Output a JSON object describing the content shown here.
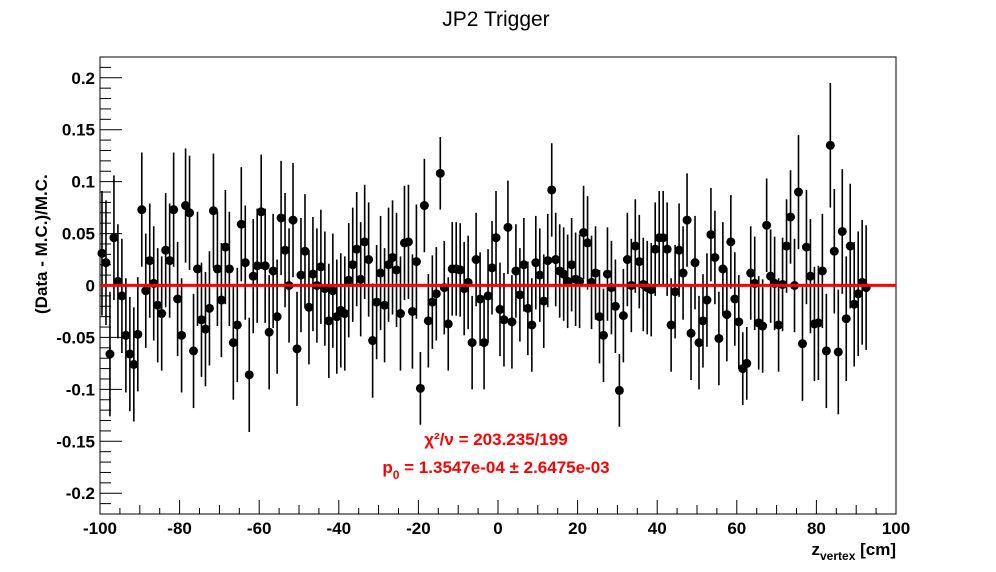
{
  "chart_data": {
    "type": "scatter",
    "title": "JP2 Trigger",
    "ylabel": "(Data - M.C.)/M.C.",
    "xlabel": {
      "main": "z",
      "sub": "vertex",
      "unit": " [cm]"
    },
    "xlim": [
      -100,
      100
    ],
    "ylim": [
      -0.22,
      0.22
    ],
    "x_ticks": [
      -100,
      -80,
      -60,
      -40,
      -20,
      0,
      20,
      40,
      60,
      80,
      100
    ],
    "x_tick_labels": [
      "-100",
      "-80",
      "-60",
      "-40",
      "-20",
      "0",
      "20",
      "40",
      "60",
      "80",
      "100"
    ],
    "y_ticks": [
      -0.2,
      -0.15,
      -0.1,
      -0.05,
      0,
      0.05,
      0.1,
      0.15,
      0.2
    ],
    "y_tick_labels": [
      "-0.2",
      "-0.15",
      "-0.1",
      "-0.05",
      "0",
      "0.05",
      "0.1",
      "0.15",
      "0.2"
    ],
    "fit": {
      "p0": 0.00013547,
      "color": "#ff0000"
    },
    "stats": {
      "chi2_label": "χ²/ν = 203.235/199",
      "p0_label": "p",
      "p0_sub": "0",
      "p0_value": " = 1.3547e-04 ± 2.6475e-03"
    },
    "marker_color": "#000000",
    "series": [
      {
        "points": [
          [
            -99.5,
            0.031,
            0.06
          ],
          [
            -98.5,
            0.022,
            0.06
          ],
          [
            -97.5,
            -0.066,
            0.06
          ],
          [
            -96.5,
            0.046,
            0.06
          ],
          [
            -95.5,
            0.004,
            0.055
          ],
          [
            -94.5,
            -0.01,
            0.055
          ],
          [
            -93.5,
            -0.048,
            0.055
          ],
          [
            -92.5,
            -0.066,
            0.055
          ],
          [
            -91.5,
            -0.076,
            0.055
          ],
          [
            -90.5,
            -0.047,
            0.055
          ],
          [
            -89.5,
            0.073,
            0.055
          ],
          [
            -88.5,
            -0.005,
            0.055
          ],
          [
            -87.5,
            0.024,
            0.055
          ],
          [
            -86.5,
            0.002,
            0.055
          ],
          [
            -85.5,
            -0.019,
            0.055
          ],
          [
            -84.5,
            -0.027,
            0.055
          ],
          [
            -83.5,
            0.034,
            0.055
          ],
          [
            -82.5,
            0.024,
            0.055
          ],
          [
            -81.5,
            0.073,
            0.055
          ],
          [
            -80.5,
            -0.013,
            0.055
          ],
          [
            -79.5,
            -0.048,
            0.055
          ],
          [
            -78.5,
            0.077,
            0.055
          ],
          [
            -77.5,
            0.07,
            0.055
          ],
          [
            -76.5,
            -0.063,
            0.055
          ],
          [
            -75.5,
            0.016,
            0.055
          ],
          [
            -74.5,
            -0.033,
            0.055
          ],
          [
            -73.5,
            -0.042,
            0.055
          ],
          [
            -72.5,
            -0.022,
            0.055
          ],
          [
            -71.5,
            0.072,
            0.055
          ],
          [
            -70.5,
            0.016,
            0.055
          ],
          [
            -69.5,
            -0.014,
            0.055
          ],
          [
            -68.5,
            0.037,
            0.055
          ],
          [
            -67.5,
            0.016,
            0.055
          ],
          [
            -66.5,
            -0.055,
            0.055
          ],
          [
            -65.5,
            -0.038,
            0.055
          ],
          [
            -64.5,
            0.059,
            0.055
          ],
          [
            -63.5,
            0.022,
            0.055
          ],
          [
            -62.5,
            -0.086,
            0.055
          ],
          [
            -61.5,
            0.009,
            0.055
          ],
          [
            -60.5,
            0.019,
            0.055
          ],
          [
            -59.5,
            0.071,
            0.055
          ],
          [
            -58.5,
            0.019,
            0.055
          ],
          [
            -57.5,
            -0.045,
            0.055
          ],
          [
            -56.5,
            0.014,
            0.055
          ],
          [
            -55.5,
            -0.03,
            0.055
          ],
          [
            -54.5,
            0.065,
            0.055
          ],
          [
            -53.5,
            0.034,
            0.055
          ],
          [
            -52.5,
            0.0,
            0.055
          ],
          [
            -51.5,
            0.063,
            0.055
          ],
          [
            -50.5,
            -0.061,
            0.055
          ],
          [
            -49.5,
            0.01,
            0.055
          ],
          [
            -48.5,
            0.033,
            0.055
          ],
          [
            -47.5,
            -0.021,
            0.055
          ],
          [
            -46.5,
            0.011,
            0.055
          ],
          [
            -45.5,
            0.0,
            0.055
          ],
          [
            -44.5,
            0.018,
            0.055
          ],
          [
            -43.5,
            -0.003,
            0.055
          ],
          [
            -42.5,
            -0.034,
            0.055
          ],
          [
            -41.5,
            -0.005,
            0.055
          ],
          [
            -40.5,
            -0.03,
            0.055
          ],
          [
            -39.5,
            -0.024,
            0.055
          ],
          [
            -38.5,
            -0.027,
            0.055
          ],
          [
            -37.5,
            0.005,
            0.055
          ],
          [
            -36.5,
            0.02,
            0.055
          ],
          [
            -35.5,
            0.035,
            0.055
          ],
          [
            -34.5,
            0.006,
            0.055
          ],
          [
            -33.5,
            0.042,
            0.055
          ],
          [
            -32.5,
            0.025,
            0.055
          ],
          [
            -31.5,
            -0.053,
            0.055
          ],
          [
            -30.5,
            -0.016,
            0.055
          ],
          [
            -29.5,
            0.012,
            0.055
          ],
          [
            -28.5,
            -0.019,
            0.055
          ],
          [
            -27.5,
            0.02,
            0.055
          ],
          [
            -26.5,
            0.027,
            0.055
          ],
          [
            -25.5,
            0.015,
            0.055
          ],
          [
            -24.5,
            -0.027,
            0.055
          ],
          [
            -23.5,
            0.041,
            0.055
          ],
          [
            -22.5,
            0.042,
            0.055
          ],
          [
            -21.5,
            -0.025,
            0.055
          ],
          [
            -20.5,
            0.023,
            0.055
          ],
          [
            -19.5,
            -0.099,
            0.035
          ],
          [
            -18.5,
            0.077,
            0.045
          ],
          [
            -17.5,
            -0.034,
            0.045
          ],
          [
            -16.5,
            -0.016,
            0.045
          ],
          [
            -15.5,
            -0.008,
            0.045
          ],
          [
            -14.5,
            0.108,
            0.035
          ],
          [
            -13.5,
            -0.002,
            0.045
          ],
          [
            -12.5,
            -0.037,
            0.045
          ],
          [
            -11.5,
            0.016,
            0.045
          ],
          [
            -10.5,
            0.016,
            0.045
          ],
          [
            -9.5,
            0.015,
            0.045
          ],
          [
            -8.5,
            -0.003,
            0.045
          ],
          [
            -7.5,
            0.003,
            0.045
          ],
          [
            -6.5,
            -0.055,
            0.045
          ],
          [
            -5.5,
            0.025,
            0.045
          ],
          [
            -4.5,
            -0.013,
            0.045
          ],
          [
            -3.5,
            -0.055,
            0.045
          ],
          [
            -2.5,
            -0.01,
            0.045
          ],
          [
            -1.5,
            0.017,
            0.045
          ],
          [
            -0.5,
            0.046,
            0.045
          ],
          [
            0.5,
            -0.023,
            0.045
          ],
          [
            1.5,
            -0.033,
            0.045
          ],
          [
            2.5,
            0.056,
            0.045
          ],
          [
            3.5,
            -0.035,
            0.045
          ],
          [
            4.5,
            0.014,
            0.045
          ],
          [
            5.5,
            -0.009,
            0.045
          ],
          [
            6.5,
            0.02,
            0.045
          ],
          [
            7.5,
            -0.022,
            0.045
          ],
          [
            8.5,
            -0.038,
            0.045
          ],
          [
            9.5,
            0.022,
            0.045
          ],
          [
            10.5,
            0.01,
            0.045
          ],
          [
            11.5,
            -0.015,
            0.045
          ],
          [
            12.5,
            0.024,
            0.045
          ],
          [
            13.5,
            0.092,
            0.045
          ],
          [
            14.5,
            0.025,
            0.045
          ],
          [
            15.5,
            0.014,
            0.045
          ],
          [
            16.5,
            0.011,
            0.045
          ],
          [
            17.5,
            0.004,
            0.045
          ],
          [
            18.5,
            0.02,
            0.045
          ],
          [
            19.5,
            0.006,
            0.045
          ],
          [
            20.5,
            0.004,
            0.045
          ],
          [
            21.5,
            0.051,
            0.045
          ],
          [
            22.5,
            0.041,
            0.045
          ],
          [
            23.5,
            0.003,
            0.045
          ],
          [
            24.5,
            0.012,
            0.045
          ],
          [
            25.5,
            -0.03,
            0.045
          ],
          [
            26.5,
            -0.048,
            0.045
          ],
          [
            27.5,
            0.011,
            0.045
          ],
          [
            28.5,
            -0.002,
            0.045
          ],
          [
            29.5,
            -0.02,
            0.045
          ],
          [
            30.5,
            -0.101,
            0.035
          ],
          [
            31.5,
            -0.029,
            0.045
          ],
          [
            32.5,
            0.025,
            0.045
          ],
          [
            33.5,
            0.0,
            0.045
          ],
          [
            34.5,
            0.038,
            0.045
          ],
          [
            35.5,
            0.023,
            0.045
          ],
          [
            36.5,
            0.001,
            0.045
          ],
          [
            37.5,
            -0.002,
            0.045
          ],
          [
            38.5,
            -0.004,
            0.045
          ],
          [
            39.5,
            0.035,
            0.045
          ],
          [
            40.5,
            0.046,
            0.045
          ],
          [
            41.5,
            0.046,
            0.045
          ],
          [
            42.5,
            0.035,
            0.045
          ],
          [
            43.5,
            -0.038,
            0.045
          ],
          [
            44.5,
            -0.006,
            0.045
          ],
          [
            45.5,
            0.034,
            0.045
          ],
          [
            46.5,
            0.012,
            0.045
          ],
          [
            47.5,
            0.063,
            0.045
          ],
          [
            48.5,
            -0.046,
            0.045
          ],
          [
            49.5,
            0.022,
            0.045
          ],
          [
            50.5,
            -0.055,
            0.045
          ],
          [
            51.5,
            -0.034,
            0.045
          ],
          [
            52.5,
            -0.014,
            0.045
          ],
          [
            53.5,
            0.049,
            0.045
          ],
          [
            54.5,
            0.027,
            0.045
          ],
          [
            55.5,
            -0.051,
            0.045
          ],
          [
            56.5,
            0.016,
            0.045
          ],
          [
            57.5,
            -0.028,
            0.045
          ],
          [
            58.5,
            0.042,
            0.045
          ],
          [
            59.5,
            -0.013,
            0.045
          ],
          [
            60.5,
            -0.035,
            0.045
          ],
          [
            61.5,
            -0.08,
            0.035
          ],
          [
            62.5,
            -0.075,
            0.035
          ],
          [
            63.5,
            0.012,
            0.045
          ],
          [
            64.5,
            0.002,
            0.045
          ],
          [
            65.5,
            -0.036,
            0.045
          ],
          [
            66.5,
            -0.039,
            0.045
          ],
          [
            67.5,
            0.058,
            0.045
          ],
          [
            68.5,
            0.009,
            0.045
          ],
          [
            69.5,
            0.002,
            0.045
          ],
          [
            70.5,
            -0.038,
            0.045
          ],
          [
            71.5,
            0.001,
            0.045
          ],
          [
            72.5,
            0.038,
            0.045
          ],
          [
            73.5,
            0.066,
            0.045
          ],
          [
            74.5,
            0.0,
            0.045
          ],
          [
            75.5,
            0.09,
            0.055
          ],
          [
            76.5,
            -0.056,
            0.055
          ],
          [
            77.5,
            0.037,
            0.055
          ],
          [
            78.5,
            0.009,
            0.055
          ],
          [
            79.5,
            -0.037,
            0.055
          ],
          [
            80.5,
            -0.036,
            0.055
          ],
          [
            81.5,
            0.014,
            0.055
          ],
          [
            82.5,
            -0.063,
            0.055
          ],
          [
            83.5,
            0.135,
            0.06
          ],
          [
            84.5,
            0.033,
            0.06
          ],
          [
            85.5,
            -0.064,
            0.06
          ],
          [
            86.5,
            0.052,
            0.06
          ],
          [
            87.5,
            -0.032,
            0.06
          ],
          [
            88.5,
            0.038,
            0.06
          ],
          [
            89.5,
            -0.018,
            0.06
          ],
          [
            90.5,
            -0.008,
            0.06
          ],
          [
            91.5,
            0.003,
            0.06
          ],
          [
            92.5,
            -0.002,
            0.06
          ]
        ]
      }
    ]
  }
}
